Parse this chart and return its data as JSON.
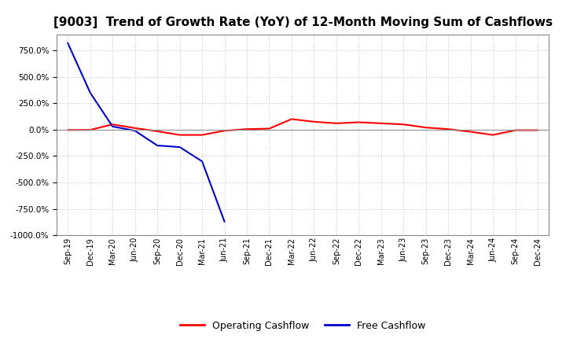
{
  "title": "[9003]  Trend of Growth Rate (YoY) of 12-Month Moving Sum of Cashflows",
  "title_fontsize": 11,
  "ylim": [
    -1000,
    900
  ],
  "yticks": [
    -1000,
    -750,
    -500,
    -250,
    0,
    250,
    500,
    750
  ],
  "background_color": "#ffffff",
  "plot_bg_color": "#ffffff",
  "grid_color": "#aaaaaa",
  "legend_labels": [
    "Operating Cashflow",
    "Free Cashflow"
  ],
  "legend_colors": [
    "#ff0000",
    "#0000cc"
  ],
  "x_labels": [
    "Sep-19",
    "Dec-19",
    "Mar-20",
    "Jun-20",
    "Sep-20",
    "Dec-20",
    "Mar-21",
    "Jun-21",
    "Sep-21",
    "Dec-21",
    "Mar-22",
    "Jun-22",
    "Sep-22",
    "Dec-22",
    "Mar-23",
    "Jun-23",
    "Sep-23",
    "Dec-23",
    "Mar-24",
    "Jun-24",
    "Sep-24",
    "Dec-24"
  ],
  "operating_cashflow": [
    -3,
    -2,
    50,
    15,
    -15,
    -50,
    -50,
    -10,
    5,
    10,
    100,
    75,
    60,
    70,
    60,
    50,
    20,
    5,
    -20,
    -50,
    -5,
    -5
  ],
  "free_cashflow": [
    820,
    350,
    30,
    -10,
    -150,
    -165,
    -300,
    -870,
    null,
    null,
    null,
    null,
    null,
    null,
    null,
    null,
    null,
    null,
    null,
    null,
    null,
    null
  ]
}
